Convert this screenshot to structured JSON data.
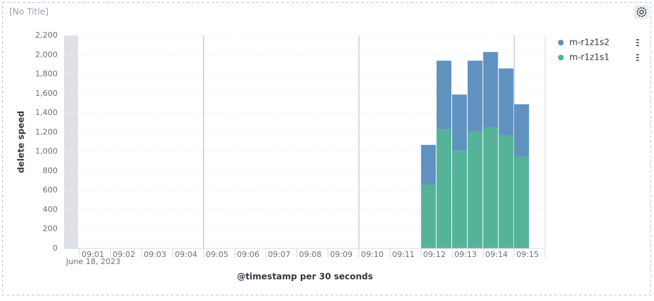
{
  "panel_title": "[No Title]",
  "chart_data": {
    "type": "bar",
    "stacked": true,
    "x_label": "@timestamp per 30 seconds",
    "x_sublabel": "June 18, 2023",
    "y_label": "delete speed",
    "x": [
      12,
      12.5,
      13,
      13.5,
      14,
      14.5,
      15
    ],
    "xlim": [
      0.5,
      16
    ],
    "xticks": [
      {
        "value": 1,
        "label": "09:01"
      },
      {
        "value": 2,
        "label": "09:02"
      },
      {
        "value": 3,
        "label": "09:03"
      },
      {
        "value": 4,
        "label": "09:04"
      },
      {
        "value": 5,
        "label": "09:05"
      },
      {
        "value": 6,
        "label": "09:06"
      },
      {
        "value": 7,
        "label": "09:07"
      },
      {
        "value": 8,
        "label": "09:08"
      },
      {
        "value": 9,
        "label": "09:09"
      },
      {
        "value": 10,
        "label": "09:10"
      },
      {
        "value": 11,
        "label": "09:11"
      },
      {
        "value": 12,
        "label": "09:12"
      },
      {
        "value": 13,
        "label": "09:13"
      },
      {
        "value": 14,
        "label": "09:14"
      },
      {
        "value": 15,
        "label": "09:15"
      }
    ],
    "ylim": [
      0,
      2200
    ],
    "yticks": [
      0,
      200,
      400,
      600,
      800,
      {
        "value": 1000,
        "label": "1,000"
      },
      {
        "value": 1200,
        "label": "1,200"
      },
      {
        "value": 1400,
        "label": "1,400"
      },
      {
        "value": 1600,
        "label": "1,600"
      },
      {
        "value": 1800,
        "label": "1,800"
      },
      {
        "value": 2000,
        "label": "2,000"
      },
      {
        "value": 2200,
        "label": "2,200"
      }
    ],
    "grid": true,
    "series": [
      {
        "name": "m-r1z1s2",
        "color": "#6092c0",
        "values": [
          410,
          710,
          580,
          730,
          780,
          690,
          540
        ]
      },
      {
        "name": "m-r1z1s1",
        "color": "#54b399",
        "values": [
          660,
          1230,
          1010,
          1210,
          1250,
          1170,
          950
        ]
      }
    ]
  }
}
